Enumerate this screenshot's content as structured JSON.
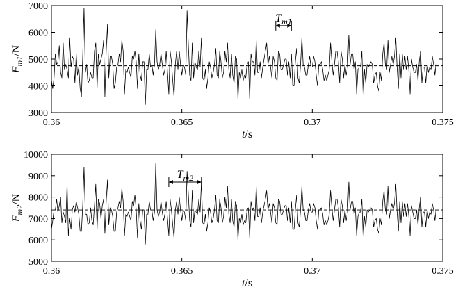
{
  "chart_data": [
    {
      "type": "line",
      "xlabel_italic": "t",
      "xlabel_unit": "/s",
      "ylabel_main": "F",
      "ylabel_sub": "m1",
      "ylabel_unit": "/N",
      "xlim": [
        0.36,
        0.375
      ],
      "ylim": [
        3000,
        7000
      ],
      "xticks": [
        0.36,
        0.365,
        0.37,
        0.375
      ],
      "xtick_labels": [
        "0.36",
        "0.365",
        "0.37",
        "0.375"
      ],
      "yticks": [
        3000,
        4000,
        5000,
        6000,
        7000
      ],
      "ytick_labels": [
        "3000",
        "4000",
        "5000",
        "6000",
        "7000"
      ],
      "mean_line": 4750,
      "period_annotation": {
        "main": "T",
        "sub": "m1",
        "x_start": 0.3686,
        "x_end": 0.3692,
        "y": 6250
      },
      "series": [
        {
          "x_start": 0.36,
          "x_step": 5e-05,
          "values": [
            4200,
            3900,
            4300,
            5200,
            4800,
            4900,
            5500,
            4500,
            4300,
            5600,
            4600,
            4800,
            4600,
            4300,
            5800,
            4700,
            5100,
            5000,
            4100,
            5200,
            4400,
            4700,
            3900,
            3600,
            5100,
            6900,
            4500,
            4800,
            4100,
            4200,
            4500,
            4300,
            4300,
            5300,
            5600,
            3900,
            5200,
            4800,
            5000,
            5200,
            5700,
            3600,
            5300,
            6300,
            4300,
            5100,
            5100,
            4800,
            3900,
            4100,
            4700,
            4800,
            5200,
            4900,
            5700,
            5300,
            3700,
            4600,
            4500,
            4700,
            4500,
            4300,
            5100,
            5000,
            5300,
            4900,
            3900,
            5200,
            4400,
            4200,
            4900,
            4900,
            3300,
            4600,
            4600,
            5200,
            4700,
            4800,
            4400,
            4800,
            6100,
            4900,
            4600,
            4800,
            5200,
            4800,
            4400,
            4600,
            5300,
            4500,
            3700,
            5300,
            4900,
            4200,
            3600,
            4800,
            5300,
            4600,
            5300,
            4800,
            4400,
            4800,
            4700,
            4400,
            6800,
            5500,
            4400,
            4200,
            5600,
            4300,
            4900,
            4700,
            4600,
            5300,
            4700,
            5800,
            4300,
            4200,
            4600,
            3900,
            4300,
            4900,
            4700,
            4300,
            4500,
            4800,
            5400,
            4400,
            4300,
            5300,
            4900,
            4300,
            4500,
            5300,
            4900,
            5600,
            4600,
            4300,
            5200,
            4400,
            4100,
            5100,
            5000,
            3500,
            4500,
            4300,
            4600,
            4200,
            4400,
            4300,
            4800,
            4900,
            3500,
            5200,
            4900,
            4900,
            4400,
            5700,
            4500,
            4500,
            4900,
            4300,
            4700,
            5000,
            5300,
            5600,
            4800,
            5100,
            4700,
            4300,
            5100,
            4900,
            4300,
            4200,
            5300,
            5200,
            4600,
            4600,
            4800,
            5000,
            5000,
            4400,
            4900,
            4300,
            5200,
            4000,
            4000,
            4900,
            5400,
            4300,
            4100,
            4800,
            5800,
            4800,
            4700,
            4400,
            4400,
            4800,
            5100,
            4700,
            4700,
            5100,
            4900,
            4400,
            4000,
            4800,
            4800,
            4900,
            4600,
            4200,
            4400,
            4200,
            4400,
            4600,
            5600,
            4900,
            4400,
            4800,
            5300,
            5300,
            4900,
            4100,
            5300,
            5000,
            4300,
            4800,
            4400,
            4700,
            5900,
            4800,
            5200,
            5200,
            4600,
            4900,
            3700,
            4600,
            4700,
            4700,
            5300,
            3600,
            4600,
            4100,
            4800,
            4700,
            4800,
            4900,
            4800,
            4100,
            4400,
            4500,
            4000,
            3800,
            4500,
            4200,
            5200,
            5600,
            4800,
            4600,
            5700,
            4500,
            4800,
            5100,
            4800,
            5100,
            5800,
            4700,
            3900,
            5200,
            4300,
            5200,
            4600,
            5100,
            4600,
            5100,
            4600,
            3700,
            5000,
            4700,
            4500,
            4500,
            4800,
            4200,
            4900,
            5300,
            4100,
            4700,
            4700,
            4100,
            4800,
            4500,
            4700,
            4600,
            5100,
            4800,
            4400,
            4900
          ]
        }
      ]
    },
    {
      "type": "line",
      "xlabel_italic": "t",
      "xlabel_unit": "/s",
      "ylabel_main": "F",
      "ylabel_sub": "m2",
      "ylabel_unit": "/N",
      "xlim": [
        0.36,
        0.375
      ],
      "ylim": [
        5000,
        10000
      ],
      "xticks": [
        0.36,
        0.365,
        0.37,
        0.375
      ],
      "xtick_labels": [
        "0.36",
        "0.365",
        "0.37",
        "0.375"
      ],
      "yticks": [
        5000,
        6000,
        7000,
        8000,
        9000,
        10000
      ],
      "ytick_labels": [
        "5000",
        "6000",
        "7000",
        "8000",
        "9000",
        "10000"
      ],
      "mean_line": 7400,
      "period_annotation": {
        "main": "T",
        "sub": "m2",
        "x_start": 0.3645,
        "x_end": 0.36575,
        "y": 8700
      },
      "series": [
        {
          "x_start": 0.36,
          "x_step": 5e-05,
          "values": [
            6500,
            6900,
            7400,
            7400,
            7900,
            7300,
            7600,
            8000,
            6800,
            7300,
            7100,
            6800,
            8600,
            6200,
            7000,
            6500,
            7400,
            7600,
            7300,
            7800,
            7500,
            7200,
            6400,
            6400,
            7600,
            9400,
            7200,
            7200,
            6700,
            6800,
            7500,
            6900,
            6700,
            7600,
            8600,
            6500,
            7900,
            7700,
            7000,
            7600,
            7900,
            6300,
            7800,
            8800,
            6700,
            7500,
            7400,
            7100,
            6400,
            6400,
            7300,
            7500,
            7800,
            7500,
            8400,
            7800,
            6200,
            7200,
            7100,
            7300,
            7100,
            6900,
            7800,
            7600,
            8100,
            7400,
            6100,
            7700,
            6900,
            6500,
            7400,
            7400,
            5800,
            7200,
            7200,
            7800,
            7400,
            7400,
            6900,
            7300,
            9600,
            7400,
            7100,
            7300,
            7800,
            7300,
            6900,
            7200,
            7800,
            7000,
            6200,
            7900,
            7400,
            6700,
            6100,
            7400,
            7800,
            7200,
            8000,
            7400,
            6900,
            7400,
            7300,
            6900,
            9200,
            8100,
            6900,
            6600,
            8300,
            6800,
            7400,
            7300,
            7200,
            7900,
            7300,
            8700,
            6800,
            6700,
            7200,
            6400,
            6800,
            7500,
            7300,
            6800,
            7000,
            7400,
            8100,
            6900,
            6800,
            7900,
            7500,
            6800,
            7100,
            8000,
            7500,
            8500,
            7200,
            6800,
            7900,
            6900,
            6600,
            7800,
            7600,
            6000,
            7000,
            6800,
            7200,
            6700,
            6900,
            6800,
            7400,
            7500,
            6100,
            7800,
            7400,
            7500,
            6900,
            8500,
            7100,
            7100,
            7500,
            6800,
            7300,
            7600,
            7900,
            8300,
            7400,
            7700,
            7300,
            6800,
            7700,
            7500,
            6800,
            6700,
            7900,
            7800,
            7200,
            7200,
            7400,
            7600,
            7600,
            6900,
            7500,
            6800,
            7800,
            6500,
            6500,
            7400,
            8100,
            6800,
            6600,
            7400,
            8500,
            7400,
            7300,
            6900,
            6900,
            7400,
            7700,
            7300,
            7300,
            7700,
            7500,
            6900,
            6500,
            7400,
            7400,
            7500,
            7200,
            6700,
            6900,
            6700,
            6900,
            7200,
            8300,
            7500,
            6900,
            7400,
            7900,
            7900,
            7500,
            6600,
            7900,
            7600,
            6800,
            7400,
            6900,
            7300,
            8700,
            7400,
            7800,
            7800,
            7200,
            7500,
            6200,
            7100,
            7300,
            7300,
            7900,
            6100,
            7100,
            6600,
            7400,
            7300,
            7400,
            7500,
            7400,
            6600,
            6900,
            7000,
            6500,
            6300,
            7000,
            6700,
            7800,
            8300,
            7400,
            7200,
            8500,
            7000,
            7400,
            7700,
            7400,
            7700,
            8600,
            7300,
            6400,
            7800,
            6800,
            7800,
            7100,
            7700,
            7100,
            7700,
            7100,
            6200,
            7600,
            7300,
            7000,
            7000,
            7400,
            6700,
            7500,
            8000,
            6600,
            7300,
            7300,
            6600,
            7400,
            7000,
            7300,
            7200,
            7700,
            7400,
            6900,
            7500
          ]
        }
      ]
    }
  ]
}
